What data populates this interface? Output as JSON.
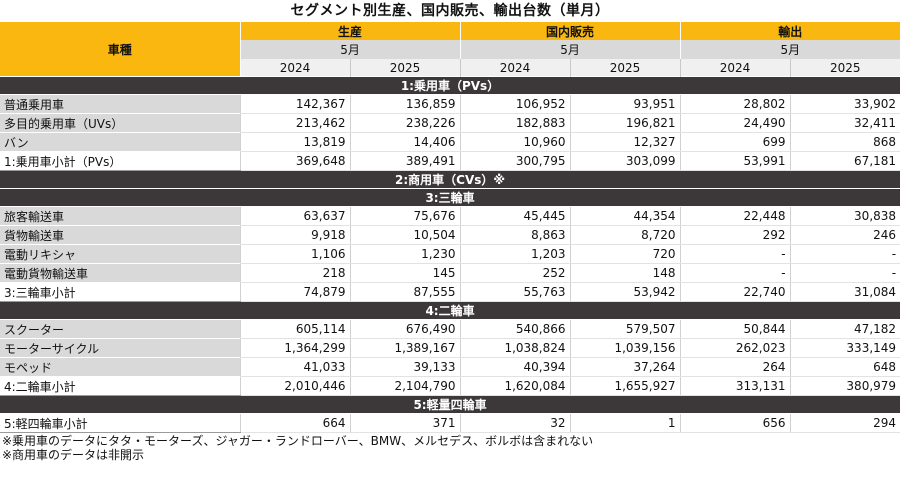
{
  "title": "セグメント別生産、国内販売、輸出台数（単月）",
  "header": {
    "vehicle_type": "車種",
    "groups": [
      "生産",
      "国内販売",
      "輸出"
    ],
    "month": "5月",
    "years": [
      "2024",
      "2025"
    ]
  },
  "sections": [
    {
      "title": "1:乗用車（PVs）",
      "rows": [
        {
          "name": "普通乗用車",
          "values": [
            "142,367",
            "136,859",
            "106,952",
            "93,951",
            "28,802",
            "33,902"
          ]
        },
        {
          "name": "多目的乗用車（UVs）",
          "values": [
            "213,462",
            "238,226",
            "182,883",
            "196,821",
            "24,490",
            "32,411"
          ]
        },
        {
          "name": "バン",
          "values": [
            "13,819",
            "14,406",
            "10,960",
            "12,327",
            "699",
            "868"
          ]
        },
        {
          "name": "1:乗用車小計（PVs）",
          "values": [
            "369,648",
            "389,491",
            "300,795",
            "303,099",
            "53,991",
            "67,181"
          ],
          "subtotal": true
        }
      ]
    },
    {
      "title": "2:商用車（CVs）※",
      "rows": []
    },
    {
      "title": "3:三輪車",
      "rows": [
        {
          "name": "旅客輸送車",
          "values": [
            "63,637",
            "75,676",
            "45,445",
            "44,354",
            "22,448",
            "30,838"
          ]
        },
        {
          "name": "貨物輸送車",
          "values": [
            "9,918",
            "10,504",
            "8,863",
            "8,720",
            "292",
            "246"
          ]
        },
        {
          "name": "電動リキシャ",
          "values": [
            "1,106",
            "1,230",
            "1,203",
            "720",
            "-",
            "-"
          ]
        },
        {
          "name": "電動貨物輸送車",
          "values": [
            "218",
            "145",
            "252",
            "148",
            "-",
            "-"
          ]
        },
        {
          "name": "3:三輪車小計",
          "values": [
            "74,879",
            "87,555",
            "55,763",
            "53,942",
            "22,740",
            "31,084"
          ],
          "subtotal": true
        }
      ]
    },
    {
      "title": "4:二輪車",
      "rows": [
        {
          "name": "スクーター",
          "values": [
            "605,114",
            "676,490",
            "540,866",
            "579,507",
            "50,844",
            "47,182"
          ]
        },
        {
          "name": "モーターサイクル",
          "values": [
            "1,364,299",
            "1,389,167",
            "1,038,824",
            "1,039,156",
            "262,023",
            "333,149"
          ]
        },
        {
          "name": "モペッド",
          "values": [
            "41,033",
            "39,133",
            "40,394",
            "37,264",
            "264",
            "648"
          ]
        },
        {
          "name": "4:二輪車小計",
          "values": [
            "2,010,446",
            "2,104,790",
            "1,620,084",
            "1,655,927",
            "313,131",
            "380,979"
          ],
          "subtotal": true
        }
      ]
    },
    {
      "title": "5:軽量四輪車",
      "rows": [
        {
          "name": "5:軽四輪車小計",
          "values": [
            "664",
            "371",
            "32",
            "1",
            "656",
            "294"
          ],
          "subtotal": true
        }
      ]
    }
  ],
  "notes": [
    "※乗用車のデータにタタ・モーターズ、ジャガー・ランドローバー、BMW、メルセデス、ボルボは含まれない",
    "※商用車のデータは非開示"
  ],
  "colors": {
    "header_yellow": "#f9b70f",
    "section_dark": "#3c3839",
    "name_grey": "#d9d9d9"
  }
}
